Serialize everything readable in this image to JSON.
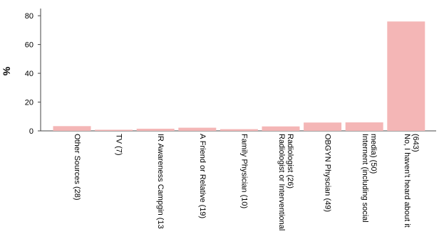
{
  "chart_data": {
    "type": "bar",
    "ylabel": "%",
    "xlabel": "",
    "ylim": [
      0,
      85
    ],
    "yticks": [
      0,
      20,
      40,
      60,
      80
    ],
    "grid": false,
    "bar_color": "#f4b6b6",
    "categories": [
      "Other Sources (28)",
      "TV (7)",
      "IR Awareness Campgin (13",
      "A Friend or Relative (19)",
      "Family Physician (10)",
      "Radiologist or Interventional Radiologist (26)",
      "OBGYN Physcian (49)",
      "Internent (including social media) (50)",
      "No, I haven't heard about it (643)"
    ],
    "category_lines": [
      [
        "Other Sources (28)"
      ],
      [
        "TV (7)"
      ],
      [
        "IR Awareness Campgin (13"
      ],
      [
        "A Friend or Relative (19)"
      ],
      [
        "Family Physician (10)"
      ],
      [
        "Radiologist or Interventional",
        "Radiologist (26)"
      ],
      [
        "OBGYN Physcian (49)"
      ],
      [
        "Internent (including social",
        "media) (50)"
      ],
      [
        "No, I haven't heard about it",
        "(643)"
      ]
    ],
    "values": [
      3.3,
      0.8,
      1.5,
      2.2,
      1.2,
      3.1,
      5.8,
      5.9,
      76.0
    ]
  }
}
